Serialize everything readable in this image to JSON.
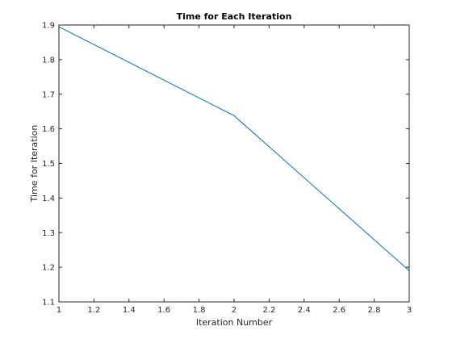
{
  "colors": {
    "series": "#0072bd",
    "axis": "#262626",
    "background": "#ffffff"
  },
  "chart_data": {
    "type": "line",
    "title": "Time for Each Iteration",
    "xlabel": "Iteration Number",
    "ylabel": "Time for Iteration",
    "xlim": [
      1,
      3
    ],
    "ylim": [
      1.1,
      1.9
    ],
    "xticks": [
      1,
      1.2,
      1.4,
      1.6,
      1.8,
      2,
      2.2,
      2.4,
      2.6,
      2.8,
      3
    ],
    "xtick_labels": [
      "1",
      "1.2",
      "1.4",
      "1.6",
      "1.8",
      "2",
      "2.2",
      "2.4",
      "2.6",
      "2.8",
      "3"
    ],
    "yticks": [
      1.1,
      1.2,
      1.3,
      1.4,
      1.5,
      1.6,
      1.7,
      1.8,
      1.9
    ],
    "ytick_labels": [
      "1.1",
      "1.2",
      "1.3",
      "1.4",
      "1.5",
      "1.6",
      "1.7",
      "1.8",
      "1.9"
    ],
    "grid": false,
    "box": true,
    "series": [
      {
        "x": [
          1,
          2,
          3
        ],
        "y": [
          1.895,
          1.638,
          1.19
        ]
      }
    ]
  }
}
